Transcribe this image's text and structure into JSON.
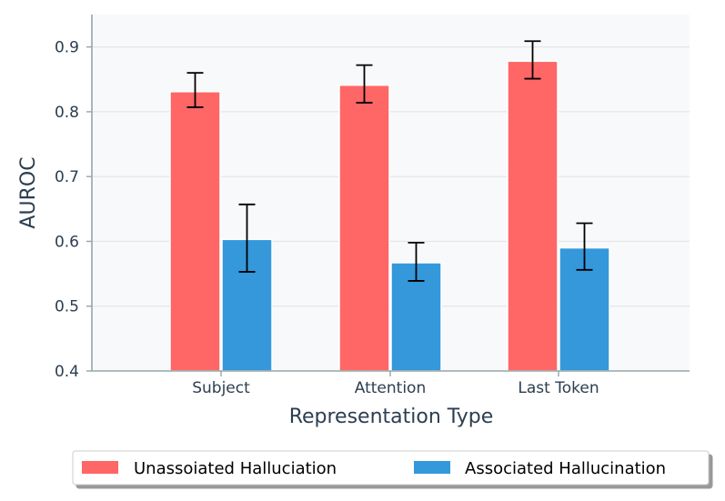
{
  "chart_data": {
    "type": "bar",
    "title": "",
    "xlabel": "Representation Type",
    "ylabel": "AUROC",
    "categories": [
      "Subject",
      "Attention",
      "Last Token"
    ],
    "ylim": [
      0.4,
      0.95
    ],
    "yticks": [
      "0.4",
      "0.5",
      "0.6",
      "0.7",
      "0.8",
      "0.9"
    ],
    "grid": true,
    "legend_position": "bottom",
    "series": [
      {
        "name": "Unassoiated Halluciation",
        "color": "#ff6666",
        "values": [
          0.831,
          0.841,
          0.878
        ],
        "err_low": [
          0.807,
          0.814,
          0.851
        ],
        "err_high": [
          0.86,
          0.872,
          0.909
        ]
      },
      {
        "name": "Associated Hallucination",
        "color": "#3498db",
        "values": [
          0.603,
          0.567,
          0.59
        ],
        "err_low": [
          0.553,
          0.539,
          0.556
        ],
        "err_high": [
          0.657,
          0.598,
          0.628
        ]
      }
    ]
  }
}
